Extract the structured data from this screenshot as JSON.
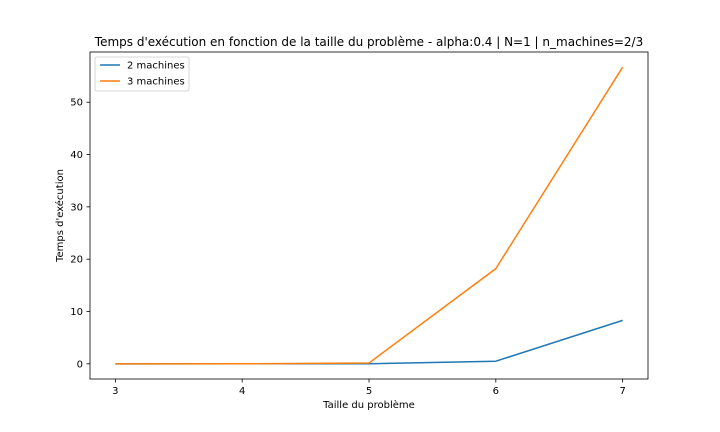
{
  "chart_data": {
    "type": "line",
    "title": "Temps d'exécution en fonction de la taille du problème - alpha:0.4 | N=1 | n_machines=2/3",
    "xlabel": "Taille du problème",
    "ylabel": "Temps d'exécution",
    "x": [
      3,
      4,
      5,
      6,
      7
    ],
    "xticks": [
      3,
      4,
      5,
      6,
      7
    ],
    "yticks": [
      0,
      10,
      20,
      30,
      40,
      50
    ],
    "xlim": [
      2.8,
      7.2
    ],
    "ylim": [
      -2.9,
      59.6
    ],
    "grid": false,
    "legend_position": "top-left",
    "series": [
      {
        "name": "2 machines",
        "color": "#1f77b4",
        "values": [
          0.0,
          0.01,
          0.02,
          0.5,
          8.3
        ]
      },
      {
        "name": "3 machines",
        "color": "#ff7f0e",
        "values": [
          0.0,
          0.01,
          0.15,
          18.2,
          56.7
        ]
      }
    ]
  }
}
